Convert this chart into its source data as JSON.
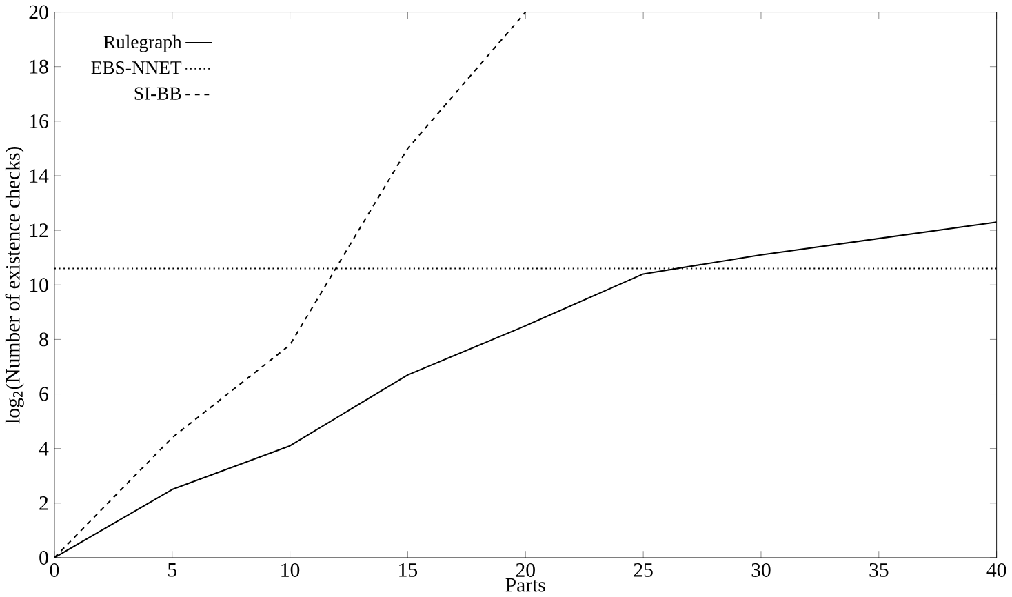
{
  "chart_data": {
    "type": "line",
    "xlabel": "Parts",
    "ylabel": "log$_{2}$(Number of existence checks)",
    "xlim": [
      0,
      40
    ],
    "ylim": [
      0,
      20
    ],
    "xticks": [
      0,
      5,
      10,
      15,
      20,
      25,
      30,
      35,
      40
    ],
    "yticks": [
      0,
      2,
      4,
      6,
      8,
      10,
      12,
      14,
      16,
      18,
      20
    ],
    "legend": "top left",
    "grid": false,
    "marker": "none",
    "series": [
      {
        "name": "Rulegraph",
        "color": "#000000",
        "line_style": "solid",
        "x": [
          0,
          5,
          10,
          15,
          20,
          25,
          30,
          35,
          40
        ],
        "values": [
          0,
          2.5,
          4.1,
          6.7,
          8.5,
          10.4,
          11.1,
          11.7,
          12.3
        ]
      },
      {
        "name": "EBS-NNET",
        "color": "#000000",
        "line_style": "dotted",
        "x": [
          0,
          40
        ],
        "values": [
          10.6,
          10.6
        ]
      },
      {
        "name": "SI-BB",
        "color": "#000000",
        "line_style": "dashed",
        "x": [
          0,
          5,
          10,
          15,
          20
        ],
        "values": [
          0,
          4.4,
          7.8,
          15,
          20
        ]
      }
    ]
  }
}
